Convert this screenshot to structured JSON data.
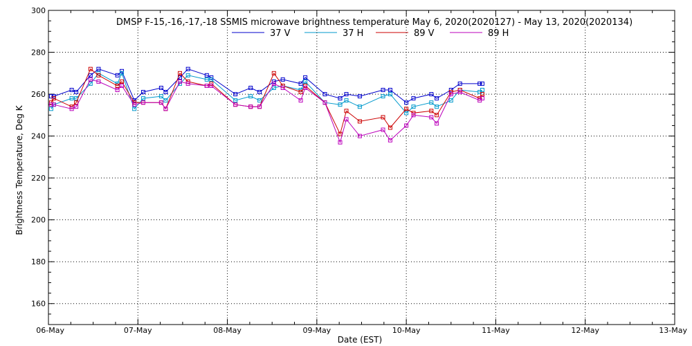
{
  "chart_data": {
    "type": "line",
    "title": "DMSP F-15,-16,-17,-18 SSMIS microwave brightness temperature May  6, 2020(2020127) - May 13, 2020(2020134)",
    "xlabel": "Date (EST)",
    "ylabel": "Brightness Temperature, Deg K",
    "xlim": [
      0,
      7
    ],
    "ylim": [
      150,
      300
    ],
    "yticks": [
      160,
      180,
      200,
      220,
      240,
      260,
      280,
      300
    ],
    "xtick_labels": [
      "06-May",
      "07-May",
      "08-May",
      "09-May",
      "10-May",
      "11-May",
      "12-May",
      "13-May"
    ],
    "grid": true,
    "legend_position": "top-center",
    "x_units": "days since 06-May 00:00",
    "series": [
      {
        "name": "37 V",
        "color": "#0000cc",
        "x": [
          0.03,
          0.06,
          0.26,
          0.31,
          0.47,
          0.56,
          0.77,
          0.82,
          0.96,
          1.06,
          1.26,
          1.31,
          1.47,
          1.56,
          1.77,
          1.82,
          2.09,
          2.26,
          2.36,
          2.52,
          2.62,
          2.82,
          2.87,
          3.09,
          3.26,
          3.33,
          3.48,
          3.74,
          3.82,
          4.0,
          4.08,
          4.28,
          4.34,
          4.5,
          4.6,
          4.82,
          4.85
        ],
        "values": [
          259,
          259,
          262,
          261,
          269,
          272,
          269,
          271,
          257,
          261,
          263,
          261,
          268,
          272,
          269,
          268,
          260,
          263,
          261,
          266,
          267,
          265,
          268,
          260,
          258,
          260,
          259,
          262,
          262,
          256,
          258,
          260,
          258,
          262,
          265,
          265,
          265
        ]
      },
      {
        "name": "37 H",
        "color": "#0099cc",
        "x": [
          0.03,
          0.06,
          0.26,
          0.31,
          0.47,
          0.56,
          0.77,
          0.82,
          0.96,
          1.06,
          1.26,
          1.31,
          1.47,
          1.56,
          1.77,
          1.82,
          2.09,
          2.26,
          2.36,
          2.52,
          2.62,
          2.82,
          2.87,
          3.09,
          3.26,
          3.33,
          3.48,
          3.74,
          3.82,
          4.0,
          4.08,
          4.28,
          4.34,
          4.5,
          4.6,
          4.82,
          4.85
        ],
        "values": [
          253,
          255,
          258,
          258,
          265,
          270,
          265,
          270,
          253,
          258,
          259,
          257,
          265,
          269,
          267,
          267,
          257,
          259,
          257,
          263,
          264,
          262,
          266,
          256,
          255,
          257,
          254,
          259,
          260,
          251,
          254,
          256,
          254,
          257,
          262,
          261,
          262
        ]
      },
      {
        "name": "89 V",
        "color": "#cc0000",
        "x": [
          0.03,
          0.06,
          0.26,
          0.31,
          0.47,
          0.56,
          0.77,
          0.82,
          0.96,
          1.06,
          1.26,
          1.31,
          1.47,
          1.56,
          1.77,
          1.82,
          2.09,
          2.26,
          2.36,
          2.52,
          2.62,
          2.82,
          2.87,
          3.09,
          3.26,
          3.33,
          3.48,
          3.74,
          3.82,
          4.0,
          4.08,
          4.28,
          4.34,
          4.5,
          4.6,
          4.82,
          4.85
        ],
        "values": [
          256,
          258,
          254,
          256,
          272,
          269,
          264,
          266,
          256,
          256,
          256,
          253,
          270,
          266,
          264,
          265,
          255,
          254,
          254,
          270,
          264,
          261,
          264,
          256,
          241,
          252,
          247,
          249,
          244,
          253,
          251,
          252,
          250,
          261,
          262,
          258,
          260
        ]
      },
      {
        "name": "89 H",
        "color": "#bb00bb",
        "x": [
          0.03,
          0.06,
          0.26,
          0.31,
          0.47,
          0.56,
          0.77,
          0.82,
          0.96,
          1.06,
          1.26,
          1.31,
          1.47,
          1.56,
          1.77,
          1.82,
          2.09,
          2.26,
          2.36,
          2.52,
          2.62,
          2.82,
          2.87,
          3.09,
          3.26,
          3.33,
          3.48,
          3.74,
          3.82,
          4.0,
          4.08,
          4.28,
          4.34,
          4.5,
          4.6,
          4.82,
          4.85
        ],
        "values": [
          255,
          255,
          253,
          254,
          267,
          266,
          262,
          264,
          255,
          256,
          256,
          253,
          266,
          265,
          264,
          264,
          255,
          254,
          254,
          265,
          263,
          257,
          263,
          256,
          237,
          248,
          240,
          243,
          238,
          245,
          250,
          249,
          246,
          260,
          261,
          257,
          258
        ]
      }
    ]
  }
}
